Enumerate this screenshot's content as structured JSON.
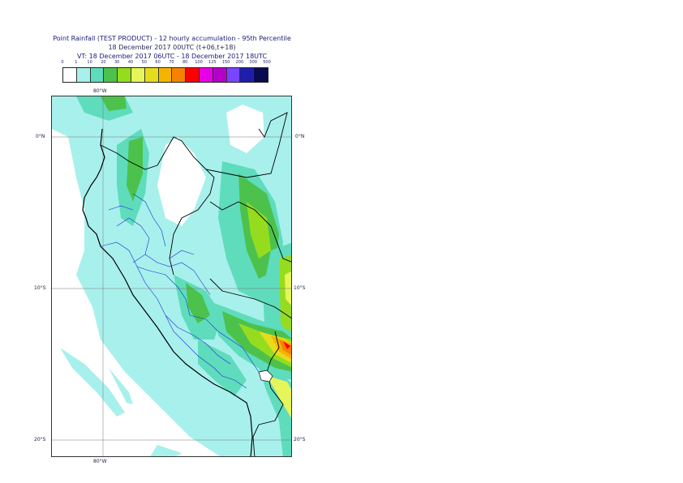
{
  "header": {
    "title": "Point Rainfall (TEST PRODUCT) - 12 hourly accumulation - 95th Percentile",
    "issue": "18 December 2017 00UTC (t+06,t+18)",
    "valid": "VT: 18 December 2017 06UTC - 18 December 2017 18UTC"
  },
  "legend": {
    "thresholds": [
      "0",
      "1",
      "10",
      "20",
      "30",
      "40",
      "50",
      "60",
      "70",
      "80",
      "100",
      "125",
      "150",
      "200",
      "300",
      "500"
    ],
    "colors": [
      "#ffffff",
      "#a8f0ec",
      "#5fdcbc",
      "#4cc24c",
      "#96dc1e",
      "#e6f55a",
      "#e6dc1e",
      "#f5b400",
      "#f58200",
      "#ff0000",
      "#e600e6",
      "#b400c8",
      "#7846ff",
      "#1e1eaa",
      "#0a0a50"
    ]
  },
  "axes": {
    "top_lon": "80°W",
    "bottom_lon": "80°W",
    "lat_left": [
      "0°N",
      "10°S",
      "20°S"
    ],
    "lat_right": [
      "0°N",
      "10°S",
      "20°S"
    ]
  },
  "map": {
    "region": "Peru and surrounding South America",
    "background_color": "#a8f0ec"
  }
}
